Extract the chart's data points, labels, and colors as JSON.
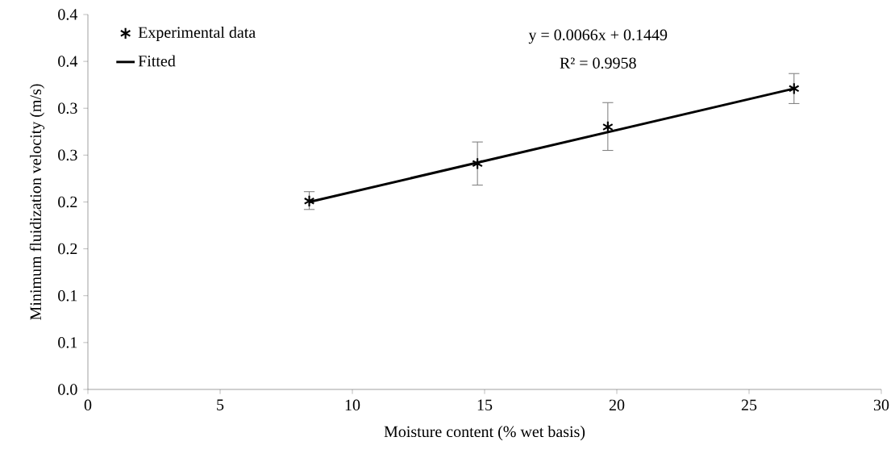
{
  "chart_data": {
    "type": "scatter",
    "xlabel": "Moisture content (% wet basis)",
    "ylabel": "Minimum fluidization velocity (m/s)",
    "xlim": [
      0,
      30
    ],
    "xticks": [
      0,
      5,
      10,
      15,
      20,
      25,
      30
    ],
    "ylim": [
      0,
      0.4
    ],
    "yticks": [
      {
        "value": 0,
        "label": "0.0"
      },
      {
        "value": 0.05,
        "label": "0.1"
      },
      {
        "value": 0.1,
        "label": "0.1"
      },
      {
        "value": 0.15,
        "label": "0.2"
      },
      {
        "value": 0.2,
        "label": "0.2"
      },
      {
        "value": 0.25,
        "label": "0.3"
      },
      {
        "value": 0.3,
        "label": "0.3"
      },
      {
        "value": 0.35,
        "label": "0.4"
      },
      {
        "value": 0.4,
        "label": "0.4"
      }
    ],
    "series": [
      {
        "name": "Experimental data",
        "marker": "cross",
        "color": "#000000",
        "x": [
          8.37,
          14.73,
          19.66,
          26.7
        ],
        "values": [
          0.201,
          0.241,
          0.28,
          0.321
        ],
        "errors": [
          [
            0.192,
            0.211
          ],
          [
            0.218,
            0.264
          ],
          [
            0.255,
            0.306
          ],
          [
            0.305,
            0.337
          ]
        ]
      },
      {
        "name": "Fitted",
        "type": "line",
        "marker": "none",
        "color": "#000000",
        "x": [
          8.37,
          26.7
        ],
        "values": [
          0.2,
          0.321
        ]
      }
    ],
    "legend": "top left",
    "grid": false,
    "annotations": [
      "y = 0.0066x + 0.1449",
      "R² = 0.9958"
    ]
  }
}
